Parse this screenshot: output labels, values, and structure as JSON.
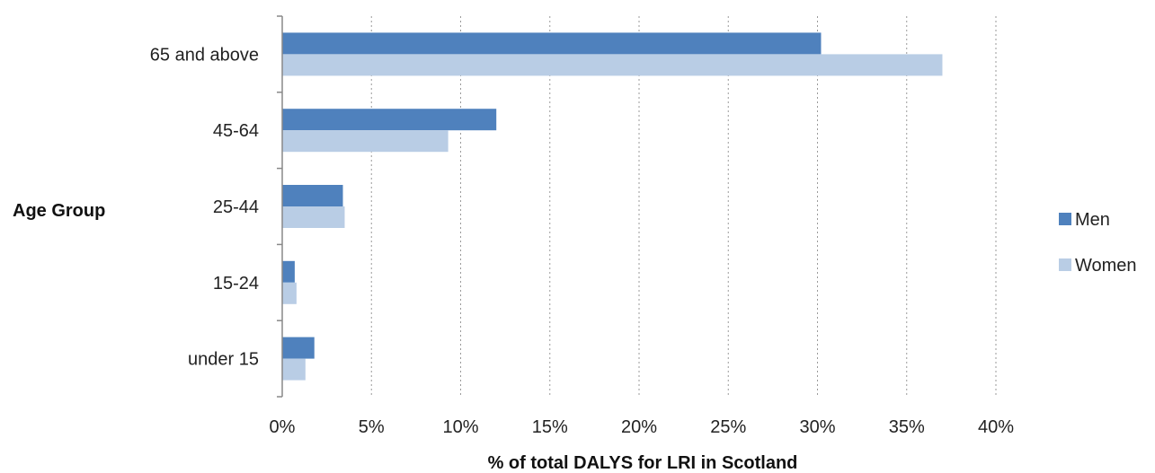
{
  "chart_data": {
    "type": "bar",
    "orientation": "horizontal",
    "categories": [
      "65 and above",
      "45-64",
      "25-44",
      "15-24",
      "under 15"
    ],
    "series": [
      {
        "name": "Men",
        "values": [
          30.2,
          12.0,
          3.4,
          0.7,
          1.8
        ],
        "color": "#4f81bd"
      },
      {
        "name": "Women",
        "values": [
          37.0,
          9.3,
          3.5,
          0.8,
          1.3
        ],
        "color": "#b9cde5"
      }
    ],
    "xlabel": "% of total DALYS for LRI in Scotland",
    "ylabel": "Age Group",
    "xlim": [
      0,
      40
    ],
    "xticks": [
      0,
      5,
      10,
      15,
      20,
      25,
      30,
      35,
      40
    ],
    "xtick_labels": [
      "0%",
      "5%",
      "10%",
      "15%",
      "20%",
      "25%",
      "30%",
      "35%",
      "40%"
    ],
    "grid": "vertical dotted",
    "legend_position": "right"
  }
}
